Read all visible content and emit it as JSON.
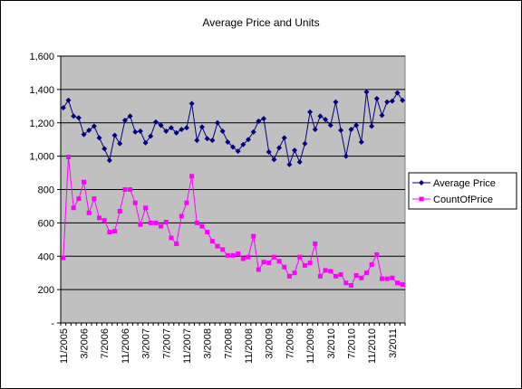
{
  "chart_data": {
    "type": "line",
    "title": "Average Price and Units",
    "xlabel": "",
    "ylabel": "",
    "ylim": [
      0,
      1600
    ],
    "y_ticks": [
      0,
      200,
      400,
      600,
      800,
      1000,
      1200,
      1400,
      1600
    ],
    "y_tick_labels": [
      "-",
      "200",
      "400",
      "600",
      "800",
      "1,000",
      "1,200",
      "1,400",
      "1,600"
    ],
    "x_tick_labels": [
      "11/2005",
      "3/2006",
      "7/2006",
      "11/2006",
      "3/2007",
      "7/2007",
      "11/2007",
      "3/2008",
      "7/2008",
      "11/2008",
      "3/2009",
      "7/2009",
      "11/2009",
      "3/2010",
      "7/2010",
      "11/2010",
      "3/2011"
    ],
    "grid": "horizontal",
    "legend_position": "right",
    "plot_background": "#c0c0c0",
    "series": [
      {
        "name": "Average Price",
        "color": "#000080",
        "marker": "diamond",
        "values": [
          1290,
          1335,
          1240,
          1230,
          1130,
          1155,
          1180,
          1110,
          1045,
          975,
          1125,
          1075,
          1215,
          1240,
          1145,
          1150,
          1080,
          1120,
          1205,
          1185,
          1150,
          1170,
          1140,
          1160,
          1170,
          1315,
          1095,
          1175,
          1105,
          1095,
          1200,
          1150,
          1085,
          1055,
          1030,
          1070,
          1100,
          1145,
          1210,
          1225,
          1025,
          980,
          1050,
          1110,
          950,
          1035,
          965,
          1075,
          1265,
          1160,
          1240,
          1220,
          1185,
          1325,
          1155,
          1000,
          1160,
          1185,
          1085,
          1385,
          1180,
          1345,
          1245,
          1325,
          1330,
          1380,
          1335
        ]
      },
      {
        "name": "CountOfPrice",
        "color": "#ff00ff",
        "marker": "square",
        "values": [
          390,
          995,
          690,
          745,
          845,
          660,
          745,
          630,
          615,
          545,
          550,
          670,
          800,
          800,
          720,
          590,
          690,
          600,
          600,
          580,
          605,
          510,
          475,
          640,
          720,
          880,
          600,
          580,
          545,
          490,
          460,
          440,
          405,
          405,
          415,
          385,
          395,
          520,
          320,
          365,
          360,
          395,
          370,
          335,
          280,
          300,
          395,
          345,
          360,
          475,
          280,
          315,
          310,
          280,
          290,
          240,
          225,
          285,
          270,
          300,
          350,
          410,
          265,
          265,
          270,
          240,
          230
        ]
      }
    ]
  }
}
